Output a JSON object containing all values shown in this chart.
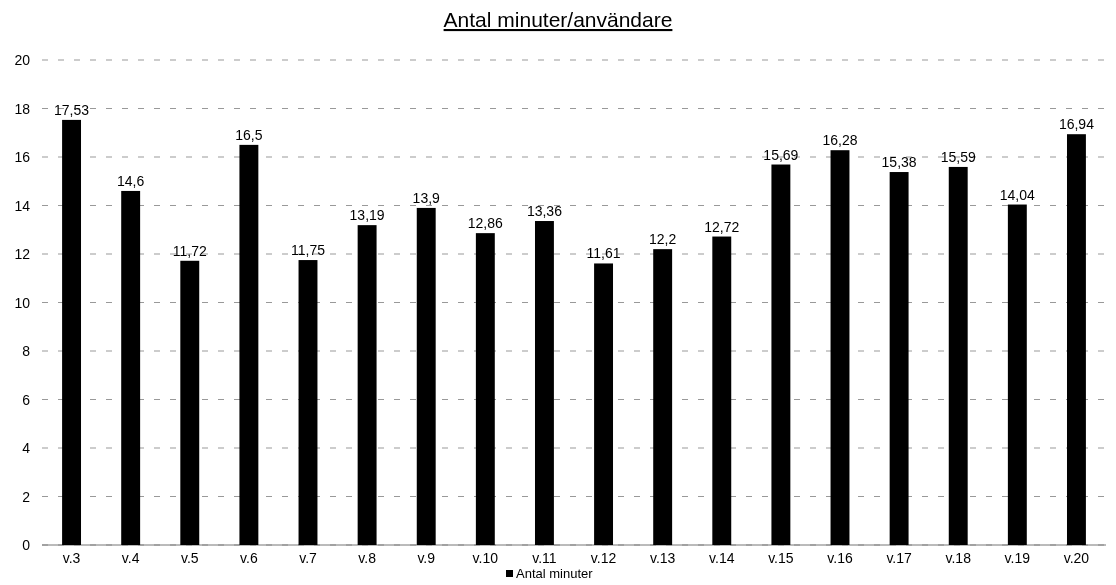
{
  "chart_data": {
    "type": "bar",
    "title": "Antal minuter/användare",
    "categories": [
      "v.3",
      "v.4",
      "v.5",
      "v.6",
      "v.7",
      "v.8",
      "v.9",
      "v.10",
      "v.11",
      "v.12",
      "v.13",
      "v.14",
      "v.15",
      "v.16",
      "v.17",
      "v.18",
      "v.19",
      "v.20"
    ],
    "series": [
      {
        "name": "Antal minuter",
        "color": "#000000",
        "values": [
          17.53,
          14.6,
          11.72,
          16.5,
          11.75,
          13.19,
          13.9,
          12.86,
          13.36,
          11.61,
          12.2,
          12.72,
          15.69,
          16.28,
          15.38,
          15.59,
          14.04,
          16.94
        ],
        "value_labels": [
          "17,53",
          "14,6",
          "11,72",
          "16,5",
          "11,75",
          "13,19",
          "13,9",
          "12,86",
          "13,36",
          "11,61",
          "12,2",
          "12,72",
          "15,69",
          "16,28",
          "15,38",
          "15,59",
          "14,04",
          "16,94"
        ]
      }
    ],
    "ylim": [
      0,
      20
    ],
    "yticks": [
      0,
      2,
      4,
      6,
      8,
      10,
      12,
      14,
      16,
      18,
      20
    ],
    "grid": "y",
    "legend": "bottom"
  }
}
